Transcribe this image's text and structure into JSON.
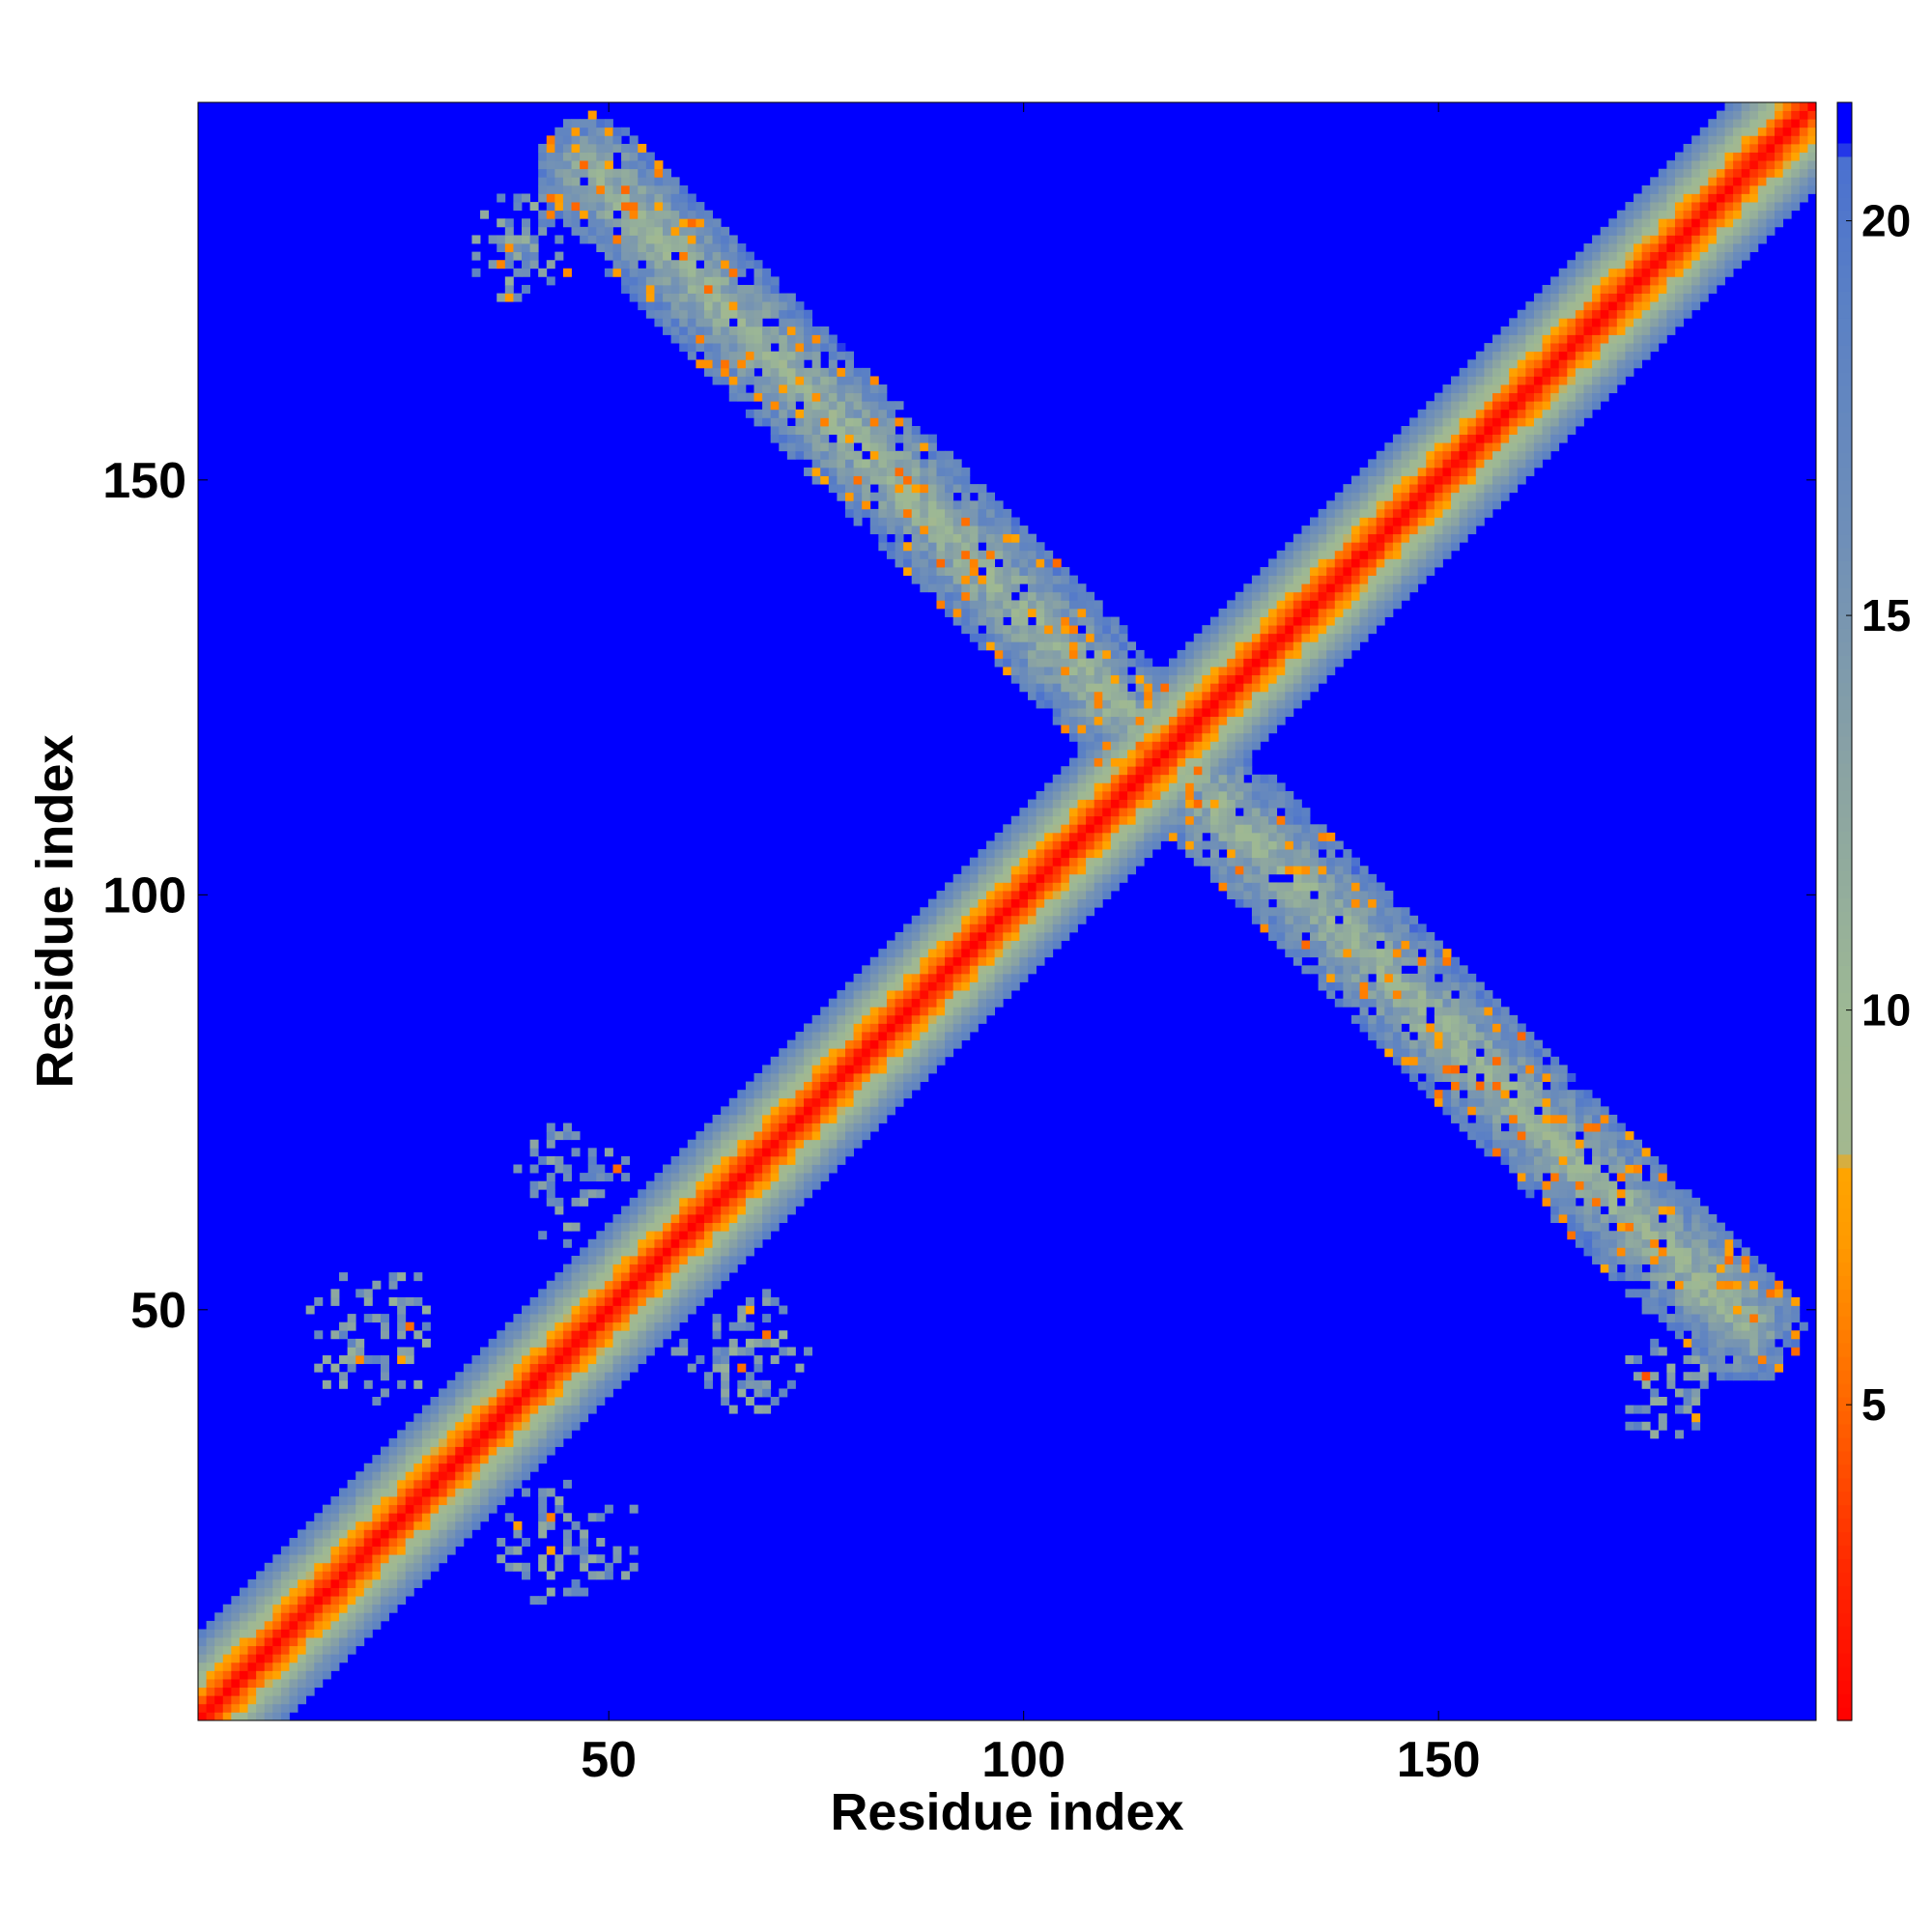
{
  "chart_data": {
    "type": "heatmap",
    "title": "",
    "xlabel": "Residue index",
    "ylabel": "Residue index",
    "x_range": [
      1,
      195
    ],
    "y_range": [
      1,
      195
    ],
    "x_ticks": [
      50,
      100,
      150
    ],
    "y_ticks": [
      50,
      100,
      150
    ],
    "x_tick_labels": [
      "50",
      "100",
      "150"
    ],
    "y_tick_labels": [
      "50",
      "100",
      "150"
    ],
    "colorbar": {
      "range": [
        1,
        21.5
      ],
      "ticks": [
        5,
        10,
        15,
        20
      ],
      "tick_labels": [
        "5",
        "10",
        "15",
        "20"
      ],
      "color_stops": [
        {
          "value": 1,
          "color": "#ff0000"
        },
        {
          "value": 3,
          "color": "#ff2a00"
        },
        {
          "value": 5,
          "color": "#ff6600"
        },
        {
          "value": 7,
          "color": "#ff9900"
        },
        {
          "value": 8,
          "color": "#ffa500"
        },
        {
          "value": 8.2,
          "color": "#a3b88f"
        },
        {
          "value": 10,
          "color": "#9db894"
        },
        {
          "value": 13,
          "color": "#8aa3a3"
        },
        {
          "value": 16,
          "color": "#6f8fb8"
        },
        {
          "value": 19,
          "color": "#5a80c5"
        },
        {
          "value": 20.8,
          "color": "#4a70d0"
        },
        {
          "value": 21,
          "color": "#0000ff"
        },
        {
          "value": 21.5,
          "color": "#0000ff"
        }
      ]
    },
    "description_features": {
      "background_value": 21.5,
      "main_diagonal": {
        "from": [
          1,
          1
        ],
        "to": [
          195,
          195
        ],
        "core_value": 1,
        "half_width_residues": 10
      },
      "antiparallel_band_upper": {
        "from": [
          48,
          187
        ],
        "to": [
          116,
          118
        ],
        "half_width_residues": 7
      },
      "antiparallel_band_lower": {
        "from": [
          118,
          116
        ],
        "to": [
          187,
          48
        ],
        "half_width_residues": 7
      },
      "off_diagonal_clusters": [
        {
          "center": [
            22,
            47
          ],
          "radius": 9
        },
        {
          "center": [
            45,
            22
          ],
          "radius": 9
        },
        {
          "center": [
            45,
            66
          ],
          "radius": 8
        },
        {
          "center": [
            66,
            45
          ],
          "radius": 8
        },
        {
          "center": [
            40,
            178
          ],
          "radius": 7
        },
        {
          "center": [
            178,
            40
          ],
          "radius": 7
        }
      ]
    }
  }
}
